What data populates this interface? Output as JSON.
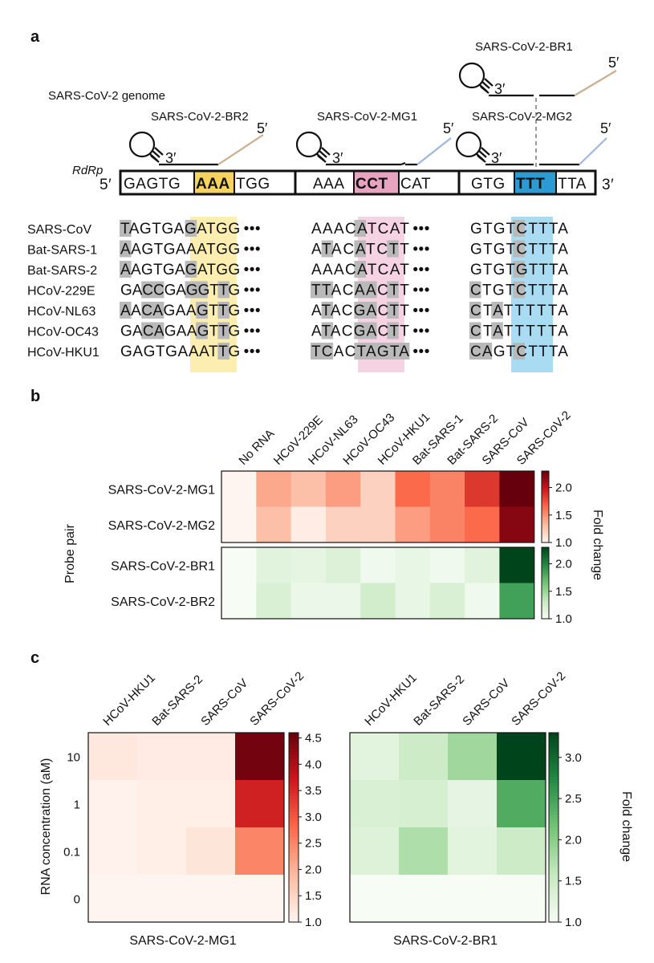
{
  "panel_a": {
    "label": "a",
    "genome_title": "SARS-CoV-2 genome",
    "gene_label": "RdRp",
    "five_prime": "5′",
    "three_prime": "3′",
    "probe_labels": [
      "SARS-CoV-2-BR2",
      "SARS-CoV-2-MG1",
      "SARS-CoV-2-MG2",
      "SARS-CoV-2-BR1"
    ],
    "genome_segments": [
      {
        "pre": "GAGTG",
        "hl": "AAA",
        "post": "TGG"
      },
      {
        "pre": "AAA",
        "hl": "CCT",
        "post": "CAT"
      },
      {
        "pre": "GTG",
        "hl": "TTT",
        "post": "TTA"
      }
    ],
    "ellipsis": "•••",
    "alignment": [
      {
        "name": "SARS-CoV",
        "s1": "TAGTGAGATGG",
        "s2": "AAACATCAT",
        "s3": "GTGTCTTTA"
      },
      {
        "name": "Bat-SARS-1",
        "s1": "AAGTGAAATGG",
        "s2": "ATACATCTT",
        "s3": "GTGTCTTTA"
      },
      {
        "name": "Bat-SARS-2",
        "s1": "AAGTGAGATGG",
        "s2": "AAACATCAT",
        "s3": "GTGTGTTTA"
      },
      {
        "name": "HCoV-229E",
        "s1": "GACCGAGGTTG",
        "s2": "TTACAACTT",
        "s3": "CTGTCTTTA"
      },
      {
        "name": "HCoV-NL63",
        "s1": "AACAGAAGTTG",
        "s2": "ATACGACTT",
        "s3": "CTATTTTTA"
      },
      {
        "name": "HCoV-OC43",
        "s1": "GACAGAAGTTG",
        "s2": "ATACGACTT",
        "s3": "CTATTTTTA"
      },
      {
        "name": "HCoV-HKU1",
        "s1": "GAGTGAAATTG",
        "s2": "TCACTAGTA",
        "s3": "CAGTCTTTA"
      }
    ]
  },
  "panel_b": {
    "label": "b",
    "y_axis_label": "Probe pair",
    "colorbar_label": "Fold change",
    "chart_data": {
      "type": "heatmap",
      "columns": [
        "No RNA",
        "HCoV-229E",
        "HCoV-NL63",
        "HCoV-OC43",
        "HCoV-HKU1",
        "Bat-SARS-1",
        "Bat-SARS-2",
        "SARS-CoV",
        "SARS-CoV-2"
      ],
      "red_block": {
        "rows": [
          "SARS-CoV-2-MG1",
          "SARS-CoV-2-MG2"
        ],
        "values": [
          [
            1.0,
            1.4,
            1.3,
            1.45,
            1.2,
            1.65,
            1.55,
            1.85,
            2.3
          ],
          [
            1.0,
            1.3,
            1.05,
            1.2,
            1.2,
            1.45,
            1.55,
            1.65,
            2.2
          ]
        ],
        "range": [
          1.0,
          2.3
        ],
        "ticks": [
          "2.0",
          "1.5",
          "1.0"
        ],
        "tick_values": [
          2.0,
          1.5,
          1.0
        ]
      },
      "green_block": {
        "rows": [
          "SARS-CoV-2-BR1",
          "SARS-CoV-2-BR2"
        ],
        "values": [
          [
            1.0,
            1.15,
            1.12,
            1.18,
            1.05,
            1.1,
            1.05,
            1.15,
            2.3
          ],
          [
            1.0,
            1.2,
            1.08,
            1.08,
            1.25,
            1.1,
            1.2,
            1.05,
            1.85
          ]
        ],
        "range": [
          1.0,
          2.3
        ],
        "ticks": [
          "2.0",
          "1.5",
          "1.0"
        ],
        "tick_values": [
          2.0,
          1.5,
          1.0
        ]
      }
    }
  },
  "panel_c": {
    "label": "c",
    "y_axis_label": "RNA concentration (aM)",
    "colorbar_label": "Fold change",
    "rows": [
      "10",
      "1",
      "0.1",
      "0"
    ],
    "chart_data": [
      {
        "type": "heatmap",
        "title": "SARS-CoV-2-MG1",
        "columns": [
          "HCoV-HKU1",
          "Bat-SARS-2",
          "SARS-CoV",
          "SARS-CoV-2"
        ],
        "rows": [
          "10",
          "1",
          "0.1",
          "0"
        ],
        "values": [
          [
            1.2,
            1.15,
            1.15,
            4.5
          ],
          [
            1.05,
            1.1,
            1.1,
            3.6
          ],
          [
            1.05,
            1.1,
            1.25,
            2.5
          ],
          [
            1.0,
            1.0,
            1.0,
            1.0
          ]
        ],
        "range": [
          1.0,
          4.6
        ],
        "ticks": [
          "4.5",
          "4.0",
          "3.5",
          "3.0",
          "2.5",
          "2.0",
          "1.5",
          "1.0"
        ],
        "tick_values": [
          4.5,
          4.0,
          3.5,
          3.0,
          2.5,
          2.0,
          1.5,
          1.0
        ]
      },
      {
        "type": "heatmap",
        "title": "SARS-CoV-2-BR1",
        "columns": [
          "HCoV-HKU1",
          "Bat-SARS-2",
          "SARS-CoV",
          "SARS-CoV-2"
        ],
        "rows": [
          "10",
          "1",
          "0.1",
          "0"
        ],
        "values": [
          [
            1.25,
            1.5,
            1.85,
            3.3
          ],
          [
            1.35,
            1.4,
            1.2,
            2.4
          ],
          [
            1.3,
            1.75,
            1.25,
            1.5
          ],
          [
            1.0,
            1.0,
            1.0,
            1.0
          ]
        ],
        "range": [
          1.0,
          3.3
        ],
        "ticks": [
          "3.0",
          "2.5",
          "2.0",
          "1.5",
          "1.0"
        ],
        "tick_values": [
          3.0,
          2.5,
          2.0,
          1.5,
          1.0
        ]
      }
    ]
  }
}
